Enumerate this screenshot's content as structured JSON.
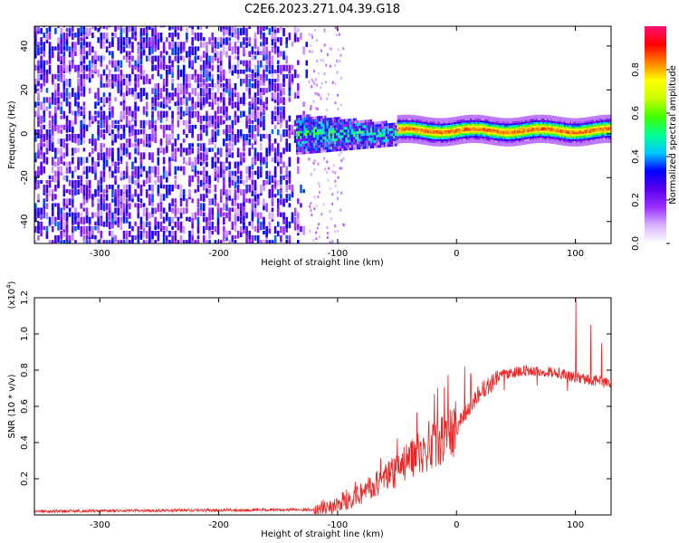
{
  "chart_data": [
    {
      "type": "heatmap",
      "title": "C2E6.2023.271.04.39.G18",
      "xlabel": "Height of straight line (km)",
      "ylabel": "Frequency (Hz)",
      "xlim": [
        -355,
        130
      ],
      "ylim": [
        -50,
        49
      ],
      "xticks": [
        -300,
        -200,
        -100,
        0,
        100
      ],
      "yticks": [
        -40,
        -20,
        0,
        20,
        40
      ],
      "colorbar": {
        "label": "Normalized spectral amplitude",
        "range": [
          0,
          1
        ],
        "ticks": [
          "0.0",
          "0.2",
          "0.4",
          "0.6",
          "0.8"
        ],
        "colors": [
          "#ffffff",
          "#d9b3ff",
          "#9b30ff",
          "#5a00ee",
          "#0000ff",
          "#00c8ff",
          "#00ff90",
          "#40ff00",
          "#c8ff00",
          "#ffff00",
          "#ff8000",
          "#ff0000",
          "#ff1070"
        ]
      },
      "regions": [
        {
          "name": "noise",
          "x": [
            -355,
            -125
          ],
          "y": [
            -50,
            49
          ],
          "level": 0.3
        },
        {
          "name": "onset",
          "x": [
            -135,
            -50
          ],
          "y": [
            -12,
            10
          ],
          "level": 0.45
        },
        {
          "name": "signal",
          "x": [
            -50,
            130
          ],
          "center_frequency": 1.5,
          "level": 0.85
        }
      ]
    },
    {
      "type": "line",
      "xlabel": "Height of straight line (km)",
      "ylabel": "SNR (10 * v/v)",
      "scale_label": "(x10",
      "scale_exponent": "4",
      "scale_close": ")",
      "xlim": [
        -355,
        130
      ],
      "ylim": [
        0,
        1.2
      ],
      "xticks": [
        -300,
        -200,
        -100,
        0,
        100
      ],
      "yticks": [
        "0.2",
        "0.4",
        "0.6",
        "0.8",
        "1.0",
        "1.2"
      ],
      "line_color": "#ee2222",
      "trend": {
        "x": [
          -355,
          -120,
          -100,
          -80,
          -60,
          -40,
          -20,
          0,
          20,
          40,
          60,
          80,
          100,
          120,
          130
        ],
        "y": [
          0.02,
          0.03,
          0.06,
          0.12,
          0.2,
          0.3,
          0.38,
          0.48,
          0.68,
          0.78,
          0.8,
          0.79,
          0.76,
          0.74,
          0.72
        ]
      },
      "spikes": [
        {
          "x": 100.5,
          "y": 1.2
        },
        {
          "x": 113,
          "y": 1.05
        },
        {
          "x": 122,
          "y": 0.95
        },
        {
          "x": 7,
          "y": 0.82
        },
        {
          "x": 12,
          "y": 0.78
        }
      ]
    }
  ]
}
